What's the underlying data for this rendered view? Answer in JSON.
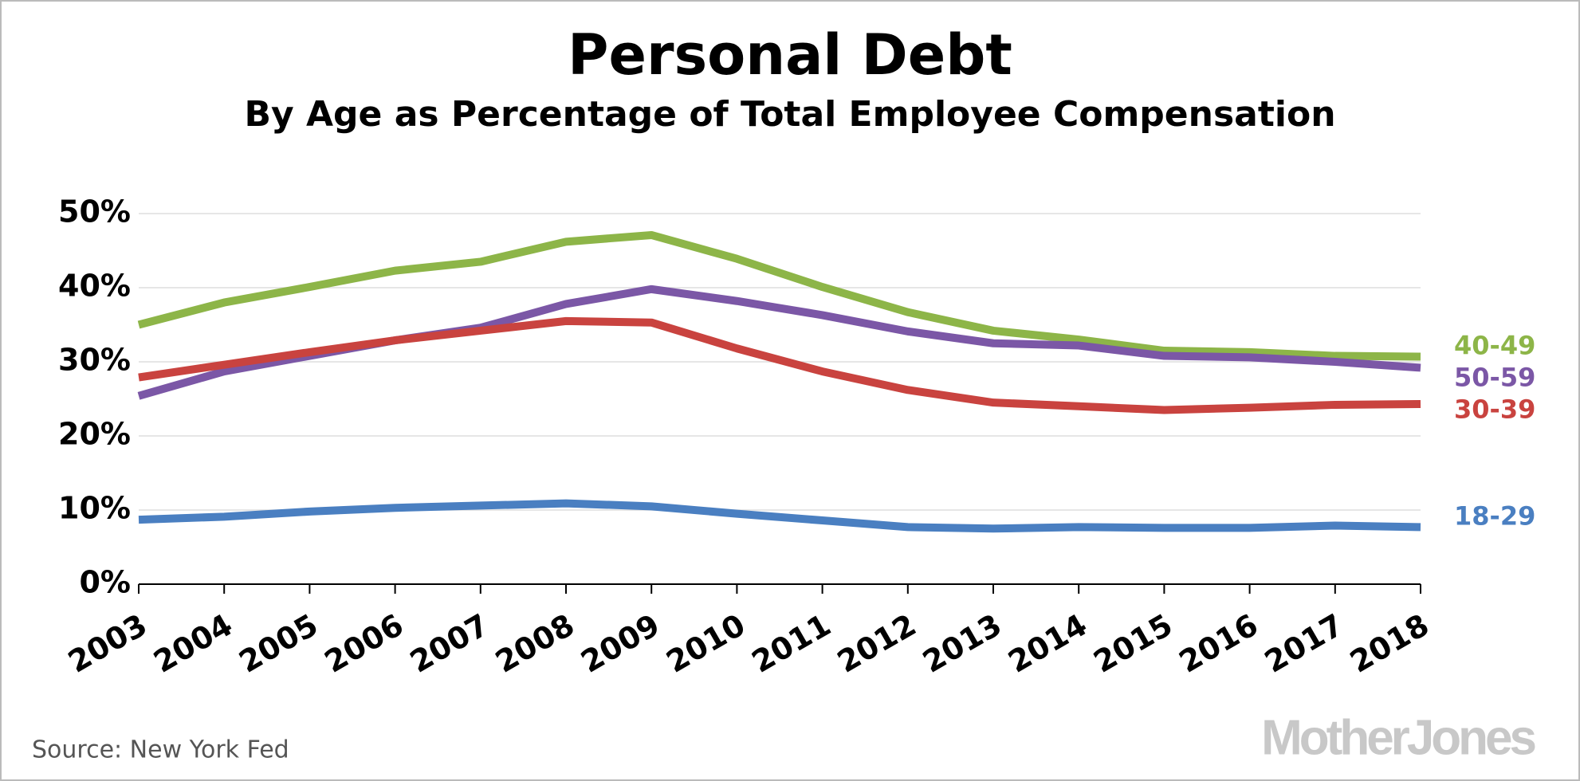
{
  "chart_data": {
    "type": "line",
    "title": "Personal Debt",
    "subtitle": "By Age as Percentage of Total Employee Compensation",
    "categories": [
      "2003",
      "2004",
      "2005",
      "2006",
      "2007",
      "2008",
      "2009",
      "2010",
      "2011",
      "2012",
      "2013",
      "2014",
      "2015",
      "2016",
      "2017",
      "2018"
    ],
    "series": [
      {
        "name": "40-49",
        "color": "#8db548",
        "values": [
          35.0,
          38.0,
          40.1,
          42.3,
          43.5,
          46.2,
          47.1,
          43.9,
          40.1,
          36.7,
          34.2,
          33.0,
          31.5,
          31.3,
          30.8,
          30.7
        ]
      },
      {
        "name": "50-59",
        "color": "#7b57a6",
        "values": [
          25.4,
          28.7,
          30.8,
          32.9,
          34.6,
          37.8,
          39.8,
          38.2,
          36.3,
          34.1,
          32.5,
          32.2,
          30.8,
          30.6,
          30.0,
          29.2
        ]
      },
      {
        "name": "30-39",
        "color": "#c9433f",
        "values": [
          27.9,
          29.6,
          31.3,
          32.9,
          34.2,
          35.5,
          35.3,
          31.8,
          28.7,
          26.2,
          24.5,
          24.0,
          23.5,
          23.8,
          24.2,
          24.3
        ]
      },
      {
        "name": "18-29",
        "color": "#4a7fc1",
        "values": [
          8.7,
          9.1,
          9.8,
          10.3,
          10.6,
          10.9,
          10.5,
          9.5,
          8.6,
          7.7,
          7.5,
          7.7,
          7.6,
          7.6,
          7.9,
          7.7
        ]
      }
    ],
    "ylim": [
      0,
      50
    ],
    "yticks": [
      {
        "value": 0,
        "label": "0%"
      },
      {
        "value": 10,
        "label": "10%"
      },
      {
        "value": 20,
        "label": "20%"
      },
      {
        "value": 30,
        "label": "30%"
      },
      {
        "value": 40,
        "label": "40%"
      },
      {
        "value": 50,
        "label": "50%"
      }
    ],
    "grid": true,
    "source": "Source: New York Fed",
    "brand": "MotherJones"
  }
}
